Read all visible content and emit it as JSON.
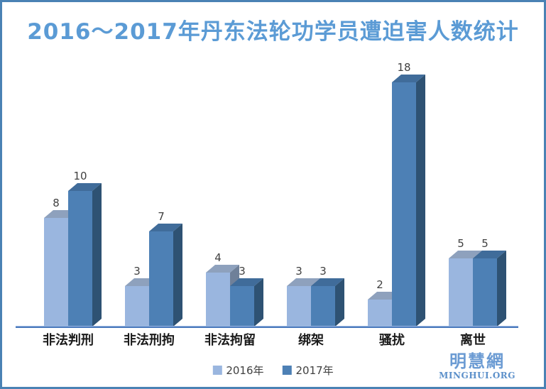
{
  "title": "2016～2017年丹东法轮功学员遭迫害人数统计",
  "chart_data": {
    "type": "bar",
    "style": "3d-clustered-column",
    "title": "2016～2017年丹东法轮功学员遭迫害人数统计",
    "categories": [
      "非法判刑",
      "非法刑拘",
      "非法拘留",
      "绑架",
      "骚扰",
      "离世"
    ],
    "series": [
      {
        "name": "2016年",
        "values": [
          8,
          3,
          4,
          3,
          2,
          5
        ],
        "color": "#9ab6df",
        "top_color": "#8ea1bd",
        "side_color": "#6f8099"
      },
      {
        "name": "2017年",
        "values": [
          10,
          7,
          3,
          3,
          18,
          5
        ],
        "color": "#4d80b5",
        "top_color": "#406c9a",
        "side_color": "#2e5273"
      }
    ],
    "value_labels": true,
    "xlabel": "",
    "ylabel": "",
    "ylim": [
      0,
      18
    ],
    "grid": false,
    "legend_position": "bottom-center",
    "axis_line_color": "#4a79bc",
    "axis_line_highlight": "#9db9e2"
  },
  "watermark": {
    "logo_text": "明慧網",
    "site_text": "MINGHUI.ORG"
  },
  "colors": {
    "title": "#5b9bd5",
    "frame_border": "#4a82b4",
    "value_label": "#404040",
    "category_label": "#1a1a1a",
    "watermark_logo": "#6b9bd3",
    "watermark_site": "#5c90ca"
  }
}
